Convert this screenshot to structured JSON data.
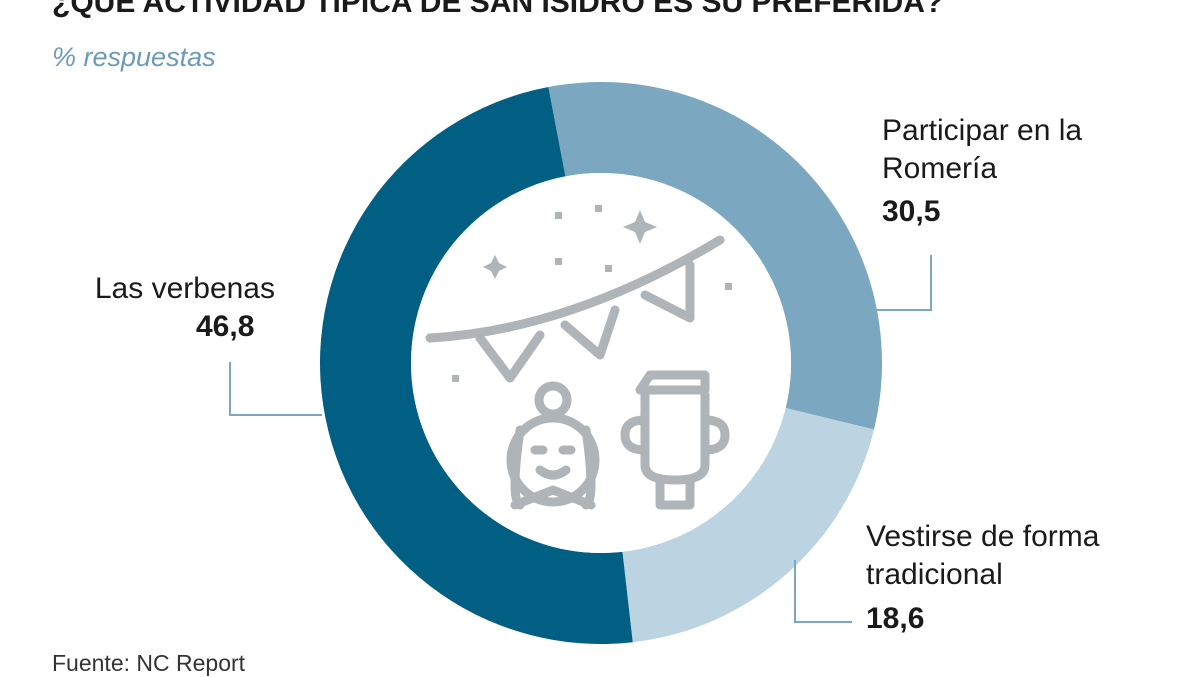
{
  "chart_data": {
    "type": "donut",
    "title": "¿QUÉ ACTIVIDAD TÍPICA DE SAN ISIDRO ES SU PREFERIDA?",
    "subtitle": "% respuestas",
    "categories": [
      "Participar en la Romería",
      "Vestirse de forma tradicional",
      "Las verbenas"
    ],
    "values": [
      30.5,
      18.6,
      46.8
    ],
    "value_labels": [
      "30,5",
      "18,6",
      "46,8"
    ],
    "colors": [
      "#7ba7c0",
      "#bcd3e2",
      "#005f83"
    ],
    "source": "Fuente: NC Report"
  }
}
